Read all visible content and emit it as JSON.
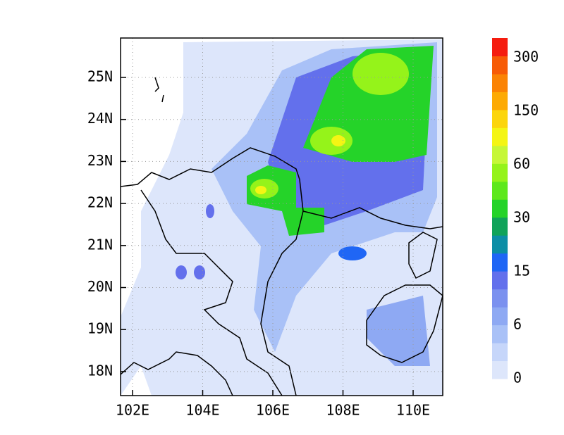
{
  "map": {
    "x_labels": [
      "102E",
      "104E",
      "106E",
      "108E",
      "110E"
    ],
    "y_labels": [
      "25N",
      "24N",
      "23N",
      "22N",
      "21N",
      "20N",
      "19N",
      "18N"
    ]
  },
  "colorbar": {
    "labels": [
      "0",
      "6",
      "15",
      "30",
      "60",
      "150",
      "300"
    ],
    "colors": [
      "#dde6fb",
      "#c6d6fa",
      "#a9c1f7",
      "#8ea9f3",
      "#7b91ef",
      "#6370ec",
      "#1f66f5",
      "#0c8ea6",
      "#10a35a",
      "#25d329",
      "#5ee81c",
      "#95f31a",
      "#c6f737",
      "#f4f514",
      "#fcd50c",
      "#fdaa04",
      "#fb8304",
      "#f75b06",
      "#f51c0f"
    ]
  }
}
